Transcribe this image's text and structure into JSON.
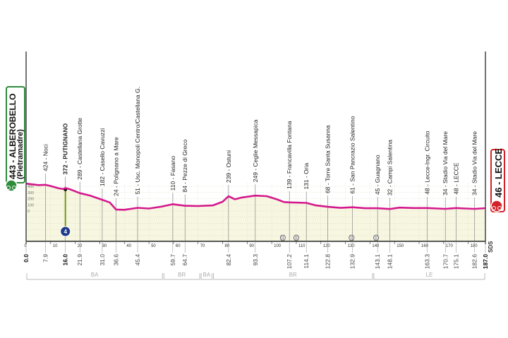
{
  "chart_data": {
    "type": "area",
    "xlim": [
      0,
      187
    ],
    "ylim": [
      0,
      400
    ],
    "y_ticks": [
      0,
      100,
      200,
      300,
      400
    ],
    "x_ticks": [
      0,
      10,
      20,
      30,
      40,
      50,
      60,
      70,
      80,
      90,
      100,
      110,
      120,
      130,
      140,
      150,
      160,
      170,
      180
    ],
    "grid": true,
    "line_color": "#d4198d",
    "fill_color": "#f7f6e1",
    "start": {
      "label": "443 - ALBEROBELLO",
      "sub": "(Pietramadre)",
      "color": "#2e8b3a"
    },
    "finish": {
      "label": "46 - LECCE",
      "color": "#d2232a"
    },
    "profile": [
      [
        0,
        443
      ],
      [
        3,
        430
      ],
      [
        5,
        420
      ],
      [
        7.9,
        424
      ],
      [
        10,
        405
      ],
      [
        13,
        370
      ],
      [
        15,
        355
      ],
      [
        16,
        372
      ],
      [
        18,
        350
      ],
      [
        21.9,
        289
      ],
      [
        26,
        250
      ],
      [
        31,
        182
      ],
      [
        34,
        140
      ],
      [
        36.6,
        24
      ],
      [
        40,
        20
      ],
      [
        45.4,
        51
      ],
      [
        50,
        40
      ],
      [
        55,
        70
      ],
      [
        59.7,
        110
      ],
      [
        64.7,
        84
      ],
      [
        70,
        80
      ],
      [
        76,
        90
      ],
      [
        80,
        150
      ],
      [
        82.4,
        239
      ],
      [
        85,
        190
      ],
      [
        88,
        220
      ],
      [
        93.3,
        249
      ],
      [
        98,
        240
      ],
      [
        102,
        190
      ],
      [
        105,
        145
      ],
      [
        107.2,
        139
      ],
      [
        114.1,
        131
      ],
      [
        118,
        90
      ],
      [
        122.8,
        68
      ],
      [
        128,
        50
      ],
      [
        132.9,
        61
      ],
      [
        138,
        45
      ],
      [
        143.1,
        45
      ],
      [
        148.1,
        32
      ],
      [
        152,
        55
      ],
      [
        158,
        48
      ],
      [
        163.3,
        48
      ],
      [
        170.7,
        34
      ],
      [
        175.1,
        48
      ],
      [
        179,
        40
      ],
      [
        182.6,
        34
      ],
      [
        187,
        46
      ]
    ],
    "waypoints": [
      {
        "km": 7.9,
        "label": "424 - Noci"
      },
      {
        "km": 16.0,
        "label": "372 - PUTIGNANO",
        "bold": true
      },
      {
        "km": 21.9,
        "label": "289 - Castellana Grotte"
      },
      {
        "km": 31.0,
        "label": "182 - Casello Cavuzzi"
      },
      {
        "km": 36.6,
        "label": "24 - Polignano a Mare"
      },
      {
        "km": 45.4,
        "label": "51 - Usc. Monopoli Centro/Castellana G."
      },
      {
        "km": 59.7,
        "label": "110 - Fasano"
      },
      {
        "km": 64.7,
        "label": "84 - Pezze di Greco"
      },
      {
        "km": 82.4,
        "label": "239 - Ostuni"
      },
      {
        "km": 93.3,
        "label": "249 - Ceglie Messapica"
      },
      {
        "km": 107.2,
        "label": "139 - Francavilla Fontana"
      },
      {
        "km": 114.1,
        "label": "131 - Oria"
      },
      {
        "km": 122.8,
        "label": "68 - Torre Santa Susanna"
      },
      {
        "km": 132.9,
        "label": "61 - San Pancrazio Salentino"
      },
      {
        "km": 143.1,
        "label": "45 - Guagnano"
      },
      {
        "km": 148.1,
        "label": "32 - Campi Salentina"
      },
      {
        "km": 163.3,
        "label": "48 - Lecce-Ingr. Circuito"
      },
      {
        "km": 170.7,
        "label": "34 - Stadio Via del Mare"
      },
      {
        "km": 175.1,
        "label": "48 - LECCE"
      },
      {
        "km": 182.6,
        "label": "34 - Stadio Via del Mare"
      }
    ],
    "distances": [
      {
        "km": 0.0,
        "label": "0.0",
        "bold": true
      },
      {
        "km": 7.9,
        "label": "7.9"
      },
      {
        "km": 16.0,
        "label": "16.0",
        "bold": true
      },
      {
        "km": 21.9,
        "label": "21.9"
      },
      {
        "km": 31.0,
        "label": "31.0"
      },
      {
        "km": 36.6,
        "label": "36.6"
      },
      {
        "km": 45.4,
        "label": "45.4"
      },
      {
        "km": 59.7,
        "label": "59.7"
      },
      {
        "km": 64.7,
        "label": "64.7"
      },
      {
        "km": 82.4,
        "label": "82.4"
      },
      {
        "km": 93.3,
        "label": "93.3"
      },
      {
        "km": 107.2,
        "label": "107.2"
      },
      {
        "km": 114.1,
        "label": "114.1"
      },
      {
        "km": 122.8,
        "label": "122.8"
      },
      {
        "km": 132.9,
        "label": "132.9"
      },
      {
        "km": 143.1,
        "label": "143.1"
      },
      {
        "km": 148.1,
        "label": "148.1"
      },
      {
        "km": 163.3,
        "label": "163.3"
      },
      {
        "km": 170.7,
        "label": "170.7"
      },
      {
        "km": 175.1,
        "label": "175.1"
      },
      {
        "km": 182.6,
        "label": "182.6"
      },
      {
        "km": 187.0,
        "label": "187.0",
        "bold": true
      }
    ],
    "sprint": {
      "km": 16.0,
      "icon": "intermediate-sprint-icon",
      "badge": "4",
      "color": "#1f3a8a"
    },
    "markers": [
      {
        "km": 104.5,
        "icon": "railway-crossing-icon"
      },
      {
        "km": 110,
        "icon": "railway-crossing-icon"
      },
      {
        "km": 132.5,
        "icon": "railway-crossing-icon"
      },
      {
        "km": 142.5,
        "icon": "railway-crossing-icon"
      }
    ],
    "provinces": [
      {
        "from": 0,
        "to": 55.8,
        "label": "BA"
      },
      {
        "from": 55.8,
        "to": 71,
        "label": "BR"
      },
      {
        "from": 71,
        "to": 76,
        "label": "BA"
      },
      {
        "from": 76,
        "to": 141.3,
        "label": "BR"
      },
      {
        "from": 141.3,
        "to": 187,
        "label": "LE"
      }
    ]
  },
  "logo": "SDS"
}
